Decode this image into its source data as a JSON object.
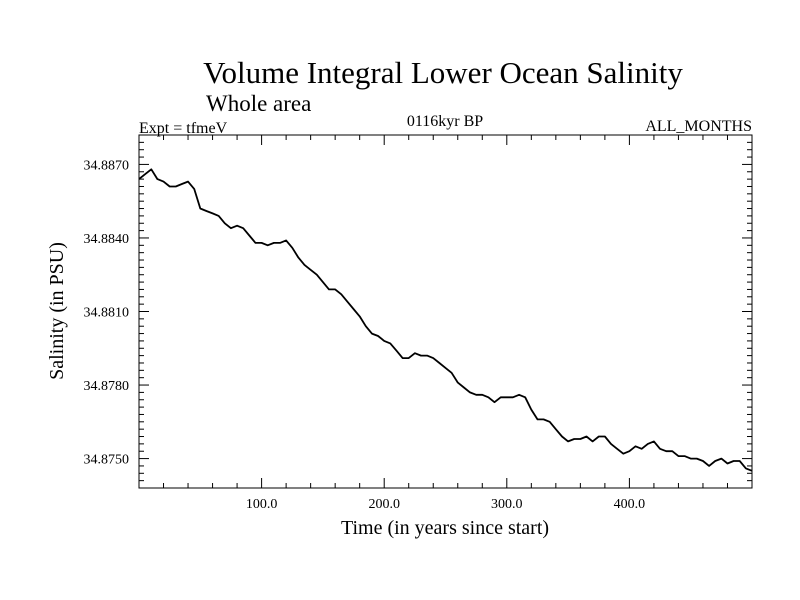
{
  "chart_data": {
    "type": "line",
    "title": "Volume Integral Lower Ocean Salinity",
    "subtitle": "Whole area",
    "left_label": "Expt = tfmeV",
    "center_label": "0116kyr BP",
    "right_label": "ALL_MONTHS",
    "xlabel": "Time (in years since start)",
    "ylabel": "Salinity (in PSU)",
    "xlim": [
      0,
      500
    ],
    "ylim": [
      34.8738,
      34.8882
    ],
    "x_ticks": [
      100.0,
      200.0,
      300.0,
      400.0
    ],
    "x_tick_labels": [
      "100.0",
      "200.0",
      "300.0",
      "400.0"
    ],
    "y_ticks": [
      34.875,
      34.878,
      34.881,
      34.884,
      34.887
    ],
    "y_tick_labels": [
      "34.8750",
      "34.8780",
      "34.8810",
      "34.8840",
      "34.8870"
    ],
    "grid": false,
    "series": [
      {
        "color": "#000000",
        "points": [
          [
            0,
            34.8864
          ],
          [
            5,
            34.8866
          ],
          [
            10,
            34.8868
          ],
          [
            15,
            34.8864
          ],
          [
            20,
            34.8863
          ],
          [
            25,
            34.8861
          ],
          [
            30,
            34.8861
          ],
          [
            35,
            34.8862
          ],
          [
            40,
            34.8863
          ],
          [
            45,
            34.886
          ],
          [
            50,
            34.8852
          ],
          [
            55,
            34.8851
          ],
          [
            60,
            34.885
          ],
          [
            65,
            34.8849
          ],
          [
            70,
            34.8846
          ],
          [
            75,
            34.8844
          ],
          [
            80,
            34.8845
          ],
          [
            85,
            34.8844
          ],
          [
            90,
            34.8841
          ],
          [
            95,
            34.8838
          ],
          [
            100,
            34.8838
          ],
          [
            105,
            34.8837
          ],
          [
            110,
            34.8838
          ],
          [
            115,
            34.8838
          ],
          [
            120,
            34.8839
          ],
          [
            125,
            34.8836
          ],
          [
            130,
            34.8832
          ],
          [
            135,
            34.8829
          ],
          [
            140,
            34.8827
          ],
          [
            145,
            34.8825
          ],
          [
            150,
            34.8822
          ],
          [
            155,
            34.8819
          ],
          [
            160,
            34.8819
          ],
          [
            165,
            34.8817
          ],
          [
            170,
            34.8814
          ],
          [
            175,
            34.8811
          ],
          [
            180,
            34.8808
          ],
          [
            185,
            34.8804
          ],
          [
            190,
            34.8801
          ],
          [
            195,
            34.88
          ],
          [
            200,
            34.8798
          ],
          [
            205,
            34.8797
          ],
          [
            210,
            34.8794
          ],
          [
            215,
            34.8791
          ],
          [
            220,
            34.8791
          ],
          [
            225,
            34.8793
          ],
          [
            230,
            34.8792
          ],
          [
            235,
            34.8792
          ],
          [
            240,
            34.8791
          ],
          [
            245,
            34.8789
          ],
          [
            250,
            34.8787
          ],
          [
            255,
            34.8785
          ],
          [
            260,
            34.8781
          ],
          [
            265,
            34.8779
          ],
          [
            270,
            34.8777
          ],
          [
            275,
            34.8776
          ],
          [
            280,
            34.8776
          ],
          [
            285,
            34.8775
          ],
          [
            290,
            34.8773
          ],
          [
            295,
            34.8775
          ],
          [
            300,
            34.8775
          ],
          [
            305,
            34.8775
          ],
          [
            310,
            34.8776
          ],
          [
            315,
            34.8775
          ],
          [
            320,
            34.877
          ],
          [
            325,
            34.8766
          ],
          [
            330,
            34.8766
          ],
          [
            335,
            34.8765
          ],
          [
            340,
            34.8762
          ],
          [
            345,
            34.8759
          ],
          [
            350,
            34.8757
          ],
          [
            355,
            34.8758
          ],
          [
            360,
            34.8758
          ],
          [
            365,
            34.8759
          ],
          [
            370,
            34.8757
          ],
          [
            375,
            34.8759
          ],
          [
            380,
            34.8759
          ],
          [
            385,
            34.8756
          ],
          [
            390,
            34.8754
          ],
          [
            395,
            34.8752
          ],
          [
            400,
            34.8753
          ],
          [
            405,
            34.8755
          ],
          [
            410,
            34.8754
          ],
          [
            415,
            34.8756
          ],
          [
            420,
            34.8757
          ],
          [
            425,
            34.8754
          ],
          [
            430,
            34.8753
          ],
          [
            435,
            34.8753
          ],
          [
            440,
            34.8751
          ],
          [
            445,
            34.8751
          ],
          [
            450,
            34.875
          ],
          [
            455,
            34.875
          ],
          [
            460,
            34.8749
          ],
          [
            465,
            34.8747
          ],
          [
            470,
            34.8749
          ],
          [
            475,
            34.875
          ],
          [
            480,
            34.8748
          ],
          [
            485,
            34.8749
          ],
          [
            490,
            34.8749
          ],
          [
            495,
            34.8746
          ],
          [
            500,
            34.8745
          ]
        ]
      }
    ]
  }
}
